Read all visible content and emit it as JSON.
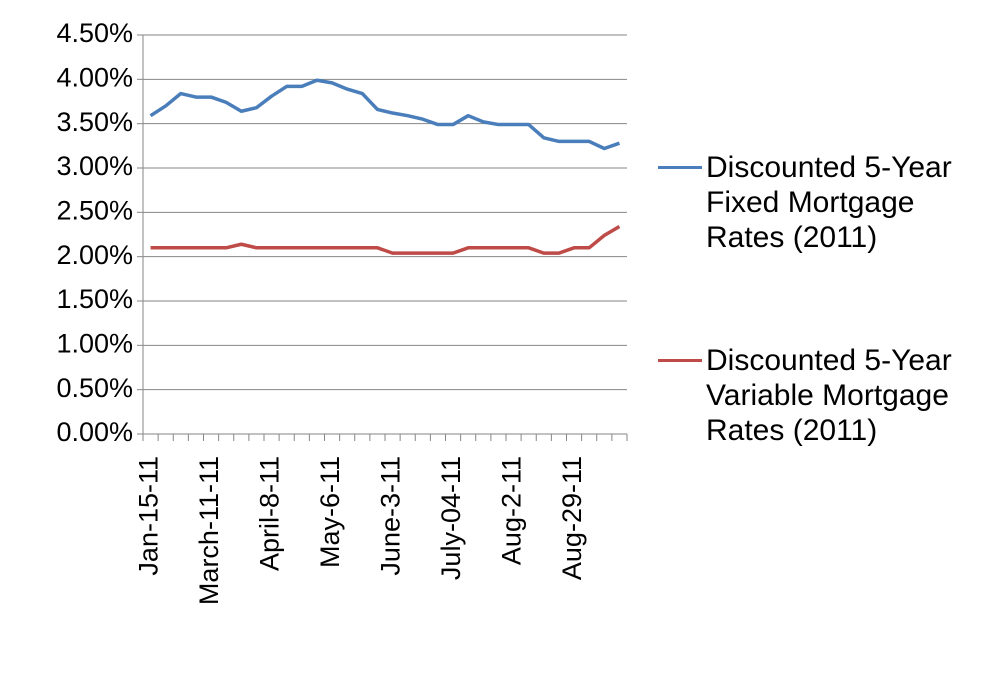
{
  "chart_data": {
    "type": "line",
    "categories": [
      "Jan-15-11",
      null,
      null,
      null,
      "March-11-11",
      null,
      null,
      null,
      "April-8-11",
      null,
      null,
      null,
      "May-6-11",
      null,
      null,
      null,
      "June-3-11",
      null,
      null,
      null,
      "July-04-11",
      null,
      null,
      null,
      "Aug-2-11",
      null,
      null,
      null,
      "Aug-29-11",
      null,
      null,
      null
    ],
    "series": [
      {
        "name": "Discounted 5-Year Fixed Mortgage Rates (2011)",
        "color": "#4a7ebb",
        "values": [
          3.59,
          3.7,
          3.84,
          3.8,
          3.8,
          3.74,
          3.64,
          3.68,
          3.81,
          3.92,
          3.92,
          3.99,
          3.96,
          3.89,
          3.84,
          3.66,
          3.62,
          3.59,
          3.55,
          3.49,
          3.49,
          3.59,
          3.52,
          3.49,
          3.49,
          3.49,
          3.34,
          3.3,
          3.3,
          3.3,
          3.22,
          3.28
        ]
      },
      {
        "name": "Discounted 5-Year Variable Mortgage Rates (2011)",
        "color": "#be4b48",
        "values": [
          2.1,
          2.1,
          2.1,
          2.1,
          2.1,
          2.1,
          2.14,
          2.1,
          2.1,
          2.1,
          2.1,
          2.1,
          2.1,
          2.1,
          2.1,
          2.1,
          2.04,
          2.04,
          2.04,
          2.04,
          2.04,
          2.1,
          2.1,
          2.1,
          2.1,
          2.1,
          2.04,
          2.04,
          2.1,
          2.1,
          2.24,
          2.34
        ]
      }
    ],
    "ylim": [
      0,
      4.5
    ],
    "yticks": [
      {
        "value": 0,
        "label": "0.00%"
      },
      {
        "value": 0.5,
        "label": "0.50%"
      },
      {
        "value": 1,
        "label": "1.00%"
      },
      {
        "value": 1.5,
        "label": "1.50%"
      },
      {
        "value": 2,
        "label": "2.00%"
      },
      {
        "value": 2.5,
        "label": "2.50%"
      },
      {
        "value": 3,
        "label": "3.00%"
      },
      {
        "value": 3.5,
        "label": "3.50%"
      },
      {
        "value": 4,
        "label": "4.00%"
      },
      {
        "value": 4.5,
        "label": "4.50%"
      }
    ],
    "grid": true,
    "legend": "right"
  }
}
